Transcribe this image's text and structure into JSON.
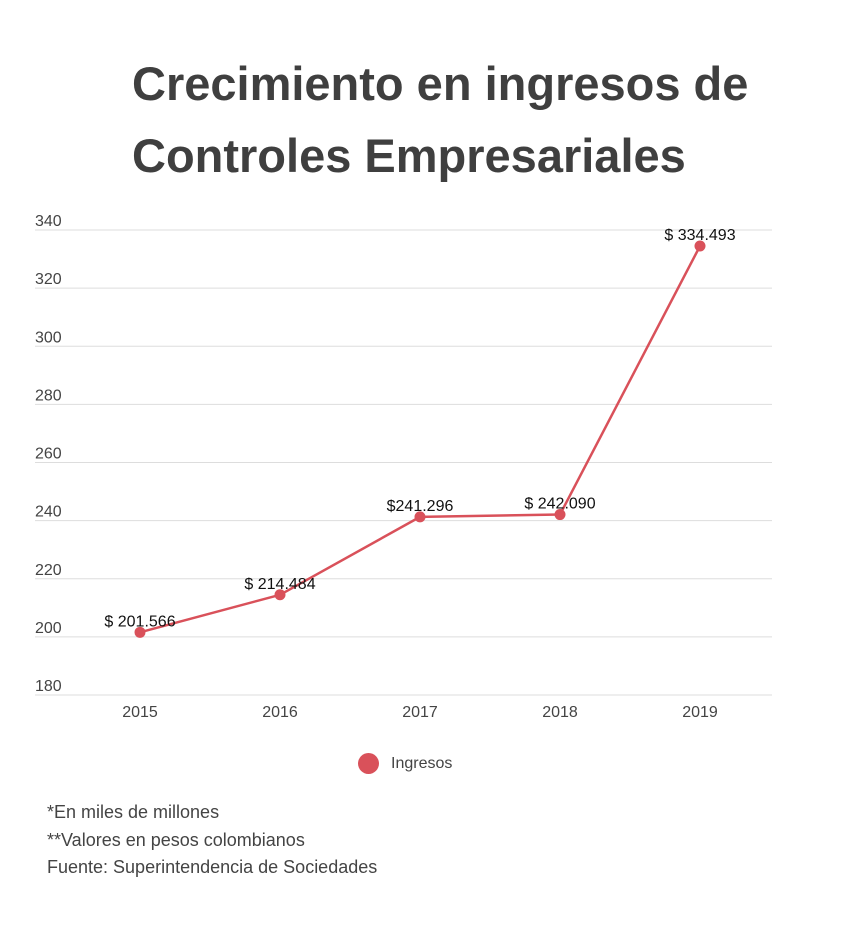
{
  "title": {
    "line1": "Crecimiento en ingresos de",
    "line2": "Controles Empresariales"
  },
  "colors": {
    "series": "#d9515a",
    "grid": "#dddddd",
    "title": "#3f3f3f",
    "text": "#444444"
  },
  "chart_data": {
    "type": "line",
    "title": "Crecimiento en ingresos de Controles Empresariales",
    "xlabel": "",
    "ylabel": "",
    "categories": [
      "2015",
      "2016",
      "2017",
      "2018",
      "2019"
    ],
    "series": [
      {
        "name": "Ingresos",
        "values": [
          201.566,
          214.484,
          241.296,
          242.09,
          334.493
        ],
        "labels": [
          "$ 201.566",
          "$ 214.484",
          "$241.296",
          "$ 242.090",
          "$ 334.493"
        ]
      }
    ],
    "ylim": [
      180,
      340
    ],
    "yticks": [
      "180",
      "200",
      "220",
      "240",
      "260",
      "280",
      "300",
      "320",
      "340"
    ],
    "grid": true,
    "legend_position": "bottom-center"
  },
  "legend": {
    "label": "Ingresos"
  },
  "notes": [
    "*En miles de millones",
    "**Valores en pesos colombianos",
    "Fuente: Superintendencia de Sociedades"
  ]
}
